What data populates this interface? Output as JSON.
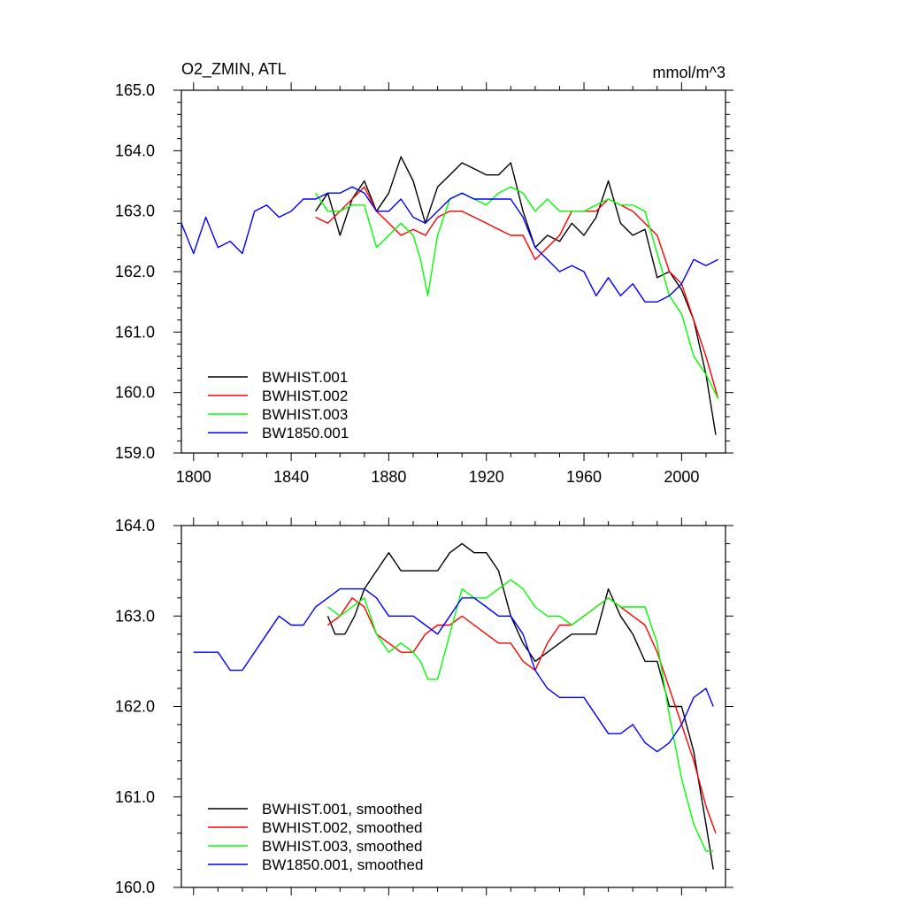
{
  "chart_data": [
    {
      "type": "line",
      "title_left": "O2_ZMIN, ATL",
      "title_right": "mmol/m^3",
      "xlim": [
        1795,
        2018
      ],
      "ylim": [
        159.0,
        165.0
      ],
      "x_ticks": [
        1800,
        1840,
        1880,
        1920,
        1960,
        2000
      ],
      "x_tick_labels": [
        "1800",
        "1840",
        "1880",
        "1920",
        "1960",
        "2000"
      ],
      "y_ticks": [
        159.0,
        160.0,
        161.0,
        162.0,
        163.0,
        164.0,
        165.0
      ],
      "y_tick_labels": [
        "159.0",
        "160.0",
        "161.0",
        "162.0",
        "163.0",
        "164.0",
        "165.0"
      ],
      "legend_position": "bottom-left",
      "series": [
        {
          "name": "BWHIST.001",
          "color": "#000000",
          "x": [
            1850,
            1855,
            1860,
            1865,
            1870,
            1875,
            1880,
            1885,
            1890,
            1895,
            1900,
            1905,
            1910,
            1915,
            1920,
            1925,
            1930,
            1935,
            1940,
            1945,
            1950,
            1955,
            1960,
            1965,
            1970,
            1975,
            1980,
            1985,
            1990,
            1995,
            2000,
            2005,
            2010,
            2014
          ],
          "y": [
            163.0,
            163.3,
            162.6,
            163.2,
            163.5,
            163.0,
            163.3,
            163.9,
            163.5,
            162.8,
            163.4,
            163.6,
            163.8,
            163.7,
            163.6,
            163.6,
            163.8,
            163.0,
            162.4,
            162.6,
            162.5,
            162.8,
            162.6,
            162.9,
            163.5,
            162.8,
            162.6,
            162.7,
            161.9,
            162.0,
            161.7,
            161.2,
            160.3,
            159.3
          ]
        },
        {
          "name": "BWHIST.002",
          "color": "#ff0000",
          "x": [
            1850,
            1855,
            1860,
            1865,
            1870,
            1875,
            1880,
            1885,
            1890,
            1895,
            1900,
            1905,
            1910,
            1915,
            1920,
            1925,
            1930,
            1935,
            1940,
            1945,
            1950,
            1955,
            1960,
            1965,
            1970,
            1975,
            1980,
            1985,
            1990,
            1995,
            2000,
            2005,
            2010,
            2015
          ],
          "y": [
            162.9,
            162.8,
            163.0,
            163.2,
            163.4,
            163.0,
            162.8,
            162.6,
            162.7,
            162.6,
            162.9,
            163.0,
            163.0,
            162.9,
            162.8,
            162.7,
            162.6,
            162.6,
            162.2,
            162.4,
            162.6,
            163.0,
            163.0,
            163.0,
            163.2,
            163.1,
            163.0,
            162.8,
            162.6,
            162.0,
            161.8,
            161.2,
            160.6,
            159.9
          ]
        },
        {
          "name": "BWHIST.003",
          "color": "#00ff00",
          "x": [
            1850,
            1855,
            1860,
            1865,
            1870,
            1875,
            1880,
            1885,
            1890,
            1893,
            1896,
            1900,
            1905,
            1910,
            1915,
            1920,
            1925,
            1930,
            1935,
            1940,
            1945,
            1950,
            1955,
            1960,
            1965,
            1970,
            1975,
            1980,
            1985,
            1990,
            1995,
            2000,
            2005,
            2010,
            2015
          ],
          "y": [
            163.3,
            163.0,
            163.0,
            163.1,
            163.1,
            162.4,
            162.6,
            162.8,
            162.6,
            162.2,
            161.6,
            162.6,
            163.2,
            163.3,
            163.2,
            163.1,
            163.3,
            163.4,
            163.3,
            163.0,
            163.2,
            163.0,
            163.0,
            163.0,
            163.1,
            163.2,
            163.1,
            163.1,
            163.0,
            162.3,
            161.6,
            161.3,
            160.6,
            160.3,
            159.9
          ]
        },
        {
          "name": "BW1850.001",
          "color": "#0000ff",
          "x": [
            1795,
            1800,
            1805,
            1810,
            1815,
            1820,
            1825,
            1830,
            1835,
            1840,
            1845,
            1850,
            1855,
            1860,
            1865,
            1870,
            1875,
            1880,
            1885,
            1890,
            1895,
            1900,
            1905,
            1910,
            1915,
            1920,
            1925,
            1930,
            1935,
            1940,
            1945,
            1950,
            1955,
            1960,
            1965,
            1970,
            1975,
            1980,
            1985,
            1990,
            1995,
            2000,
            2005,
            2010,
            2015
          ],
          "y": [
            162.8,
            162.3,
            162.9,
            162.4,
            162.5,
            162.3,
            163.0,
            163.1,
            162.9,
            163.0,
            163.2,
            163.2,
            163.3,
            163.3,
            163.4,
            163.3,
            163.0,
            163.0,
            163.2,
            162.9,
            162.8,
            163.0,
            163.2,
            163.3,
            163.2,
            163.2,
            163.2,
            163.2,
            162.9,
            162.4,
            162.2,
            162.0,
            162.1,
            162.0,
            161.6,
            161.9,
            161.6,
            161.8,
            161.5,
            161.5,
            161.6,
            161.8,
            162.2,
            162.1,
            162.2
          ]
        }
      ]
    },
    {
      "type": "line",
      "xlim": [
        1795,
        2018
      ],
      "ylim": [
        160.0,
        164.0
      ],
      "x_ticks": [
        1800,
        1840,
        1880,
        1920,
        1960,
        2000
      ],
      "y_ticks": [
        160.0,
        161.0,
        162.0,
        163.0,
        164.0
      ],
      "y_tick_labels": [
        "160.0",
        "161.0",
        "162.0",
        "163.0",
        "164.0"
      ],
      "legend_position": "bottom-left",
      "series": [
        {
          "name": "BWHIST.001, smoothed",
          "color": "#000000",
          "x": [
            1855,
            1858,
            1862,
            1866,
            1870,
            1875,
            1880,
            1885,
            1890,
            1895,
            1900,
            1905,
            1910,
            1915,
            1920,
            1925,
            1930,
            1935,
            1940,
            1945,
            1950,
            1955,
            1960,
            1965,
            1970,
            1975,
            1980,
            1985,
            1990,
            1995,
            2000,
            2005,
            2010,
            2013
          ],
          "y": [
            163.0,
            162.8,
            162.8,
            163.0,
            163.3,
            163.5,
            163.7,
            163.5,
            163.5,
            163.5,
            163.5,
            163.7,
            163.8,
            163.7,
            163.7,
            163.5,
            163.0,
            162.7,
            162.5,
            162.6,
            162.7,
            162.8,
            162.8,
            162.8,
            163.3,
            163.0,
            162.8,
            162.5,
            162.5,
            162.0,
            162.0,
            161.5,
            160.7,
            160.2
          ]
        },
        {
          "name": "BWHIST.002, smoothed",
          "color": "#ff0000",
          "x": [
            1855,
            1860,
            1865,
            1870,
            1875,
            1880,
            1885,
            1890,
            1895,
            1900,
            1905,
            1910,
            1915,
            1920,
            1925,
            1930,
            1935,
            1940,
            1945,
            1950,
            1955,
            1960,
            1965,
            1970,
            1975,
            1980,
            1985,
            1990,
            1995,
            2000,
            2005,
            2010,
            2014
          ],
          "y": [
            162.9,
            163.0,
            163.2,
            163.1,
            162.8,
            162.7,
            162.6,
            162.6,
            162.8,
            162.9,
            162.9,
            163.0,
            162.9,
            162.8,
            162.7,
            162.7,
            162.5,
            162.4,
            162.7,
            162.9,
            162.9,
            163.0,
            163.1,
            163.2,
            163.1,
            163.0,
            162.9,
            162.6,
            162.2,
            161.8,
            161.4,
            160.9,
            160.6
          ]
        },
        {
          "name": "BWHIST.003, smoothed",
          "color": "#00ff00",
          "x": [
            1855,
            1860,
            1865,
            1870,
            1875,
            1880,
            1885,
            1890,
            1893,
            1896,
            1900,
            1905,
            1910,
            1915,
            1920,
            1925,
            1930,
            1935,
            1940,
            1945,
            1950,
            1955,
            1960,
            1965,
            1970,
            1975,
            1980,
            1985,
            1990,
            1995,
            2000,
            2005,
            2010,
            2013
          ],
          "y": [
            163.1,
            163.0,
            163.1,
            163.2,
            162.8,
            162.6,
            162.7,
            162.6,
            162.5,
            162.3,
            162.3,
            162.8,
            163.3,
            163.2,
            163.2,
            163.3,
            163.4,
            163.3,
            163.1,
            163.0,
            163.0,
            162.9,
            163.0,
            163.1,
            163.2,
            163.1,
            163.1,
            163.1,
            162.7,
            161.9,
            161.2,
            160.7,
            160.4,
            160.4
          ]
        },
        {
          "name": "BW1850.001, smoothed",
          "color": "#0000ff",
          "x": [
            1800,
            1805,
            1810,
            1815,
            1820,
            1825,
            1830,
            1835,
            1840,
            1845,
            1850,
            1855,
            1860,
            1865,
            1870,
            1875,
            1880,
            1885,
            1890,
            1895,
            1900,
            1905,
            1910,
            1915,
            1920,
            1925,
            1930,
            1935,
            1940,
            1945,
            1950,
            1955,
            1960,
            1965,
            1970,
            1975,
            1980,
            1985,
            1990,
            1995,
            2000,
            2005,
            2010,
            2013
          ],
          "y": [
            162.6,
            162.6,
            162.6,
            162.4,
            162.4,
            162.6,
            162.8,
            163.0,
            162.9,
            162.9,
            163.1,
            163.2,
            163.3,
            163.3,
            163.3,
            163.2,
            163.0,
            163.0,
            163.0,
            162.9,
            162.8,
            163.0,
            163.2,
            163.2,
            163.1,
            163.0,
            163.0,
            162.8,
            162.4,
            162.2,
            162.1,
            162.1,
            162.1,
            161.9,
            161.7,
            161.7,
            161.8,
            161.6,
            161.5,
            161.6,
            161.8,
            162.1,
            162.2,
            162.0
          ]
        }
      ]
    }
  ]
}
